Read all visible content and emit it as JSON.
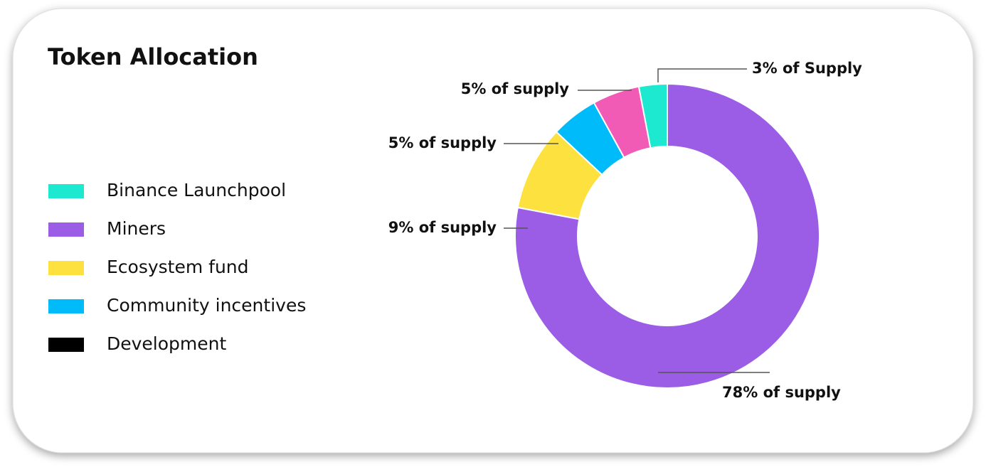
{
  "chart_data": {
    "type": "donut",
    "title": "Token Allocation",
    "categories": [
      "Binance Launchpool",
      "Miners",
      "Ecosystem fund",
      "Community incentives",
      "Development"
    ],
    "values": [
      3,
      78,
      9,
      5,
      5
    ],
    "value_labels": [
      "3% of Supply",
      "78% of supply",
      "9% of supply",
      "5% of supply",
      "5% of supply"
    ],
    "colors": [
      "#1de9d0",
      "#9b5de5",
      "#fce13f",
      "#00bbf9",
      "#f15bb5"
    ],
    "legend_colors": [
      "#1de9d0",
      "#9b5de5",
      "#fce13f",
      "#00bbf9",
      "#000000"
    ]
  }
}
